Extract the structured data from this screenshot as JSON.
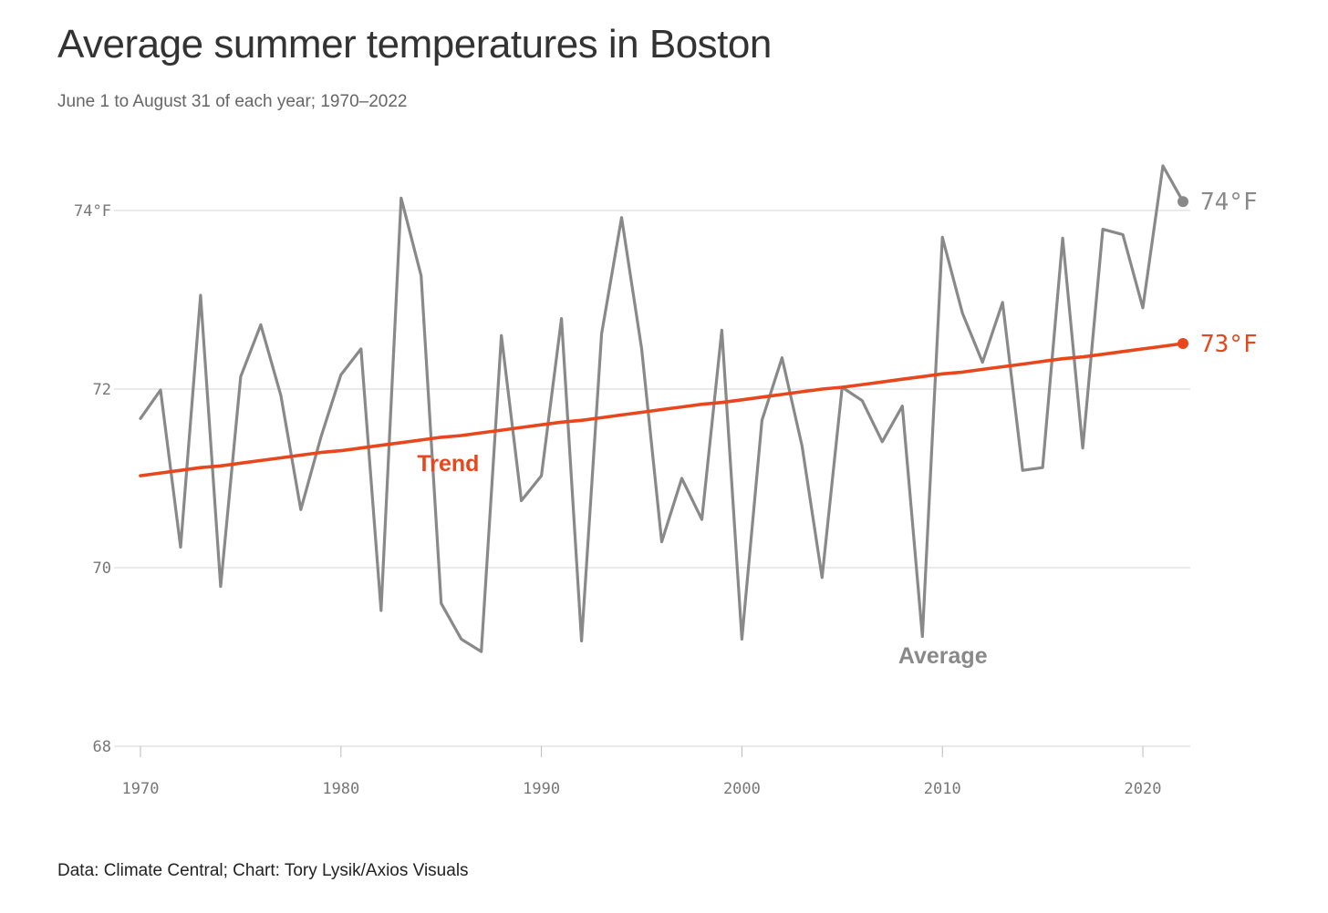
{
  "header": {
    "title": "Average summer temperatures in Boston",
    "subtitle": "June 1 to August 31 of each year; 1970–2022"
  },
  "footer": {
    "source": "Data: Climate Central; Chart: Tory Lysik/Axios Visuals"
  },
  "colors": {
    "average": "#898989",
    "trend": "#e8461c",
    "grid": "#d6d6d6",
    "tick_text": "#777777"
  },
  "chart_data": {
    "type": "line",
    "title": "Average summer temperatures in Boston",
    "subtitle": "June 1 to August 31 of each year; 1970–2022",
    "xlabel": "",
    "ylabel": "",
    "xlim": [
      1970,
      2022
    ],
    "ylim": [
      68,
      74.9
    ],
    "grid": true,
    "x_ticks": [
      1970,
      1980,
      1990,
      2000,
      2010,
      2020
    ],
    "y_ticks": [
      {
        "value": 68,
        "label": "68"
      },
      {
        "value": 70,
        "label": "70"
      },
      {
        "value": 72,
        "label": "72"
      },
      {
        "value": 74,
        "label": "74°F"
      }
    ],
    "x": [
      1970,
      1971,
      1972,
      1973,
      1974,
      1975,
      1976,
      1977,
      1978,
      1979,
      1980,
      1981,
      1982,
      1983,
      1984,
      1985,
      1986,
      1987,
      1988,
      1989,
      1990,
      1991,
      1992,
      1993,
      1994,
      1995,
      1996,
      1997,
      1998,
      1999,
      2000,
      2001,
      2002,
      2003,
      2004,
      2005,
      2006,
      2007,
      2008,
      2009,
      2010,
      2011,
      2012,
      2013,
      2014,
      2015,
      2016,
      2017,
      2018,
      2019,
      2020,
      2021,
      2022
    ],
    "series": [
      {
        "name": "Average",
        "label": "Average",
        "end_label": "74°F",
        "values": [
          71.67,
          71.99,
          70.23,
          73.05,
          69.79,
          72.14,
          72.72,
          71.93,
          70.65,
          71.46,
          72.16,
          72.45,
          69.52,
          74.14,
          73.27,
          69.6,
          69.2,
          69.06,
          72.6,
          70.75,
          71.03,
          72.79,
          69.18,
          72.62,
          73.92,
          72.45,
          70.29,
          71.0,
          70.54,
          72.66,
          69.2,
          71.65,
          72.35,
          71.36,
          69.89,
          72.02,
          71.87,
          71.41,
          71.81,
          69.23,
          73.7,
          72.85,
          72.3,
          72.97,
          71.09,
          71.12,
          73.69,
          71.34,
          73.79,
          73.73,
          72.91,
          74.5,
          74.1
        ]
      },
      {
        "name": "Trend",
        "label": "Trend",
        "end_label": "73°F",
        "values": [
          71.03,
          71.06,
          71.09,
          71.12,
          71.14,
          71.17,
          71.2,
          71.23,
          71.26,
          71.29,
          71.31,
          71.34,
          71.37,
          71.4,
          71.43,
          71.46,
          71.48,
          71.51,
          71.54,
          71.57,
          71.6,
          71.63,
          71.65,
          71.68,
          71.71,
          71.74,
          71.77,
          71.8,
          71.83,
          71.85,
          71.88,
          71.91,
          71.94,
          71.97,
          72.0,
          72.02,
          72.05,
          72.08,
          72.11,
          72.14,
          72.17,
          72.19,
          72.22,
          72.25,
          72.28,
          72.31,
          72.34,
          72.36,
          72.39,
          72.42,
          72.45,
          72.48,
          72.51
        ]
      }
    ]
  }
}
